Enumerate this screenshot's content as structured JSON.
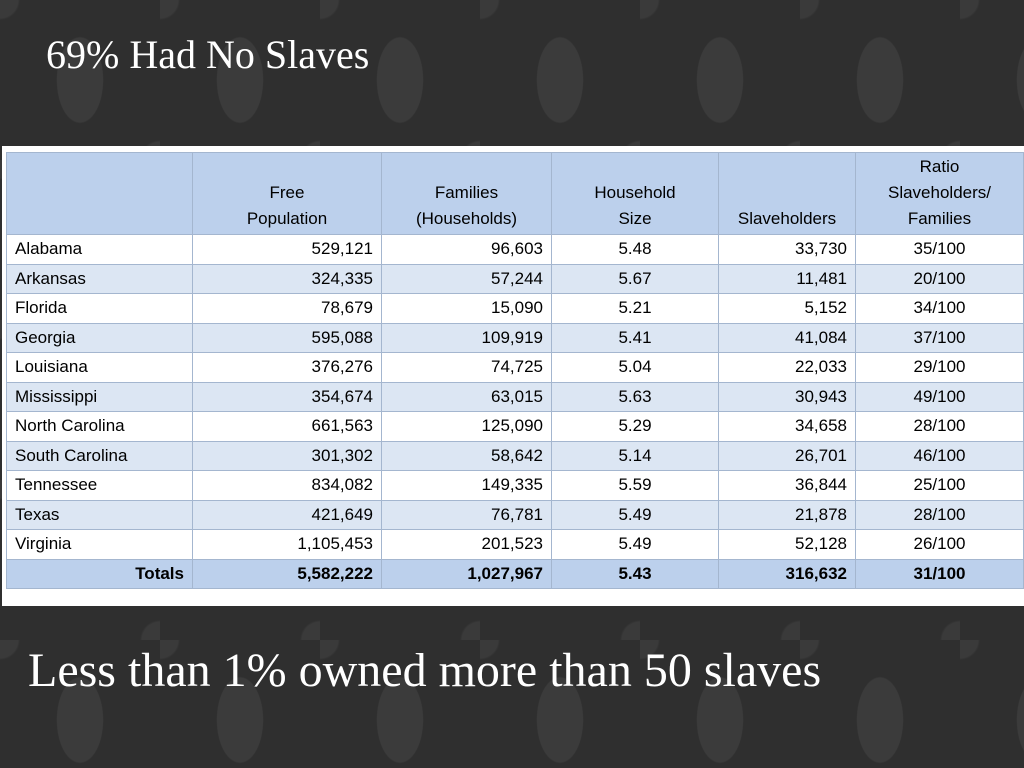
{
  "title": "69% Had No Slaves",
  "subtitle": "Less than 1% owned more than 50 slaves",
  "table": {
    "headers": [
      "",
      "Free\nPopulation",
      "Families\n(Households)",
      "Household\nSize",
      "Slaveholders",
      "Ratio\nSlaveholders/\nFamilies"
    ],
    "rows": [
      {
        "state": "Alabama",
        "population": "529,121",
        "families": "96,603",
        "household_size": "5.48",
        "slaveholders": "33,730",
        "ratio": "35/100"
      },
      {
        "state": "Arkansas",
        "population": "324,335",
        "families": "57,244",
        "household_size": "5.67",
        "slaveholders": "11,481",
        "ratio": "20/100"
      },
      {
        "state": "Florida",
        "population": "78,679",
        "families": "15,090",
        "household_size": "5.21",
        "slaveholders": "5,152",
        "ratio": "34/100"
      },
      {
        "state": "Georgia",
        "population": "595,088",
        "families": "109,919",
        "household_size": "5.41",
        "slaveholders": "41,084",
        "ratio": "37/100"
      },
      {
        "state": "Louisiana",
        "population": "376,276",
        "families": "74,725",
        "household_size": "5.04",
        "slaveholders": "22,033",
        "ratio": "29/100"
      },
      {
        "state": "Mississippi",
        "population": "354,674",
        "families": "63,015",
        "household_size": "5.63",
        "slaveholders": "30,943",
        "ratio": "49/100"
      },
      {
        "state": "North Carolina",
        "population": "661,563",
        "families": "125,090",
        "household_size": "5.29",
        "slaveholders": "34,658",
        "ratio": "28/100"
      },
      {
        "state": "South Carolina",
        "population": "301,302",
        "families": "58,642",
        "household_size": "5.14",
        "slaveholders": "26,701",
        "ratio": "46/100"
      },
      {
        "state": "Tennessee",
        "population": "834,082",
        "families": "149,335",
        "household_size": "5.59",
        "slaveholders": "36,844",
        "ratio": "25/100"
      },
      {
        "state": "Texas",
        "population": "421,649",
        "families": "76,781",
        "household_size": "5.49",
        "slaveholders": "21,878",
        "ratio": "28/100"
      },
      {
        "state": "Virginia",
        "population": "1,105,453",
        "families": "201,523",
        "household_size": "5.49",
        "slaveholders": "52,128",
        "ratio": "26/100"
      }
    ],
    "totals": {
      "label": "Totals",
      "population": "5,582,222",
      "families": "1,027,967",
      "household_size": "5.43",
      "slaveholders": "316,632",
      "ratio": "31/100"
    }
  }
}
